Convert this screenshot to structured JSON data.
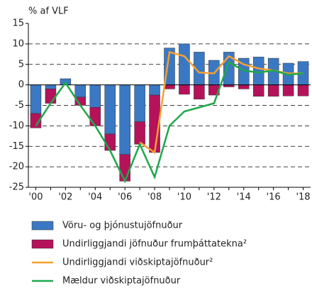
{
  "chart_data": {
    "type": "bar-line",
    "y_axis_label": "% af VLF",
    "categories": [
      "'00",
      null,
      "'02",
      null,
      "'04",
      null,
      "'06",
      null,
      "'08",
      null,
      "'10",
      null,
      "'12",
      null,
      "'14",
      null,
      "'16",
      null,
      "'18"
    ],
    "series": [
      {
        "name": "Vöru- og þjónustujöfnuður",
        "kind": "bar",
        "color": "#3b78c3",
        "values": [
          -7,
          -1,
          1.5,
          -3,
          -5.5,
          -12,
          -17,
          -9,
          -2.5,
          9,
          10,
          8,
          6,
          8,
          6.5,
          6.8,
          6.5,
          5.3,
          5.7
        ]
      },
      {
        "name": "Undirliggjandi jöfnuður frumþáttatekna²",
        "kind": "bar",
        "color": "#b5125a",
        "values": [
          -3.5,
          -3.5,
          0,
          -2,
          -4.5,
          -4,
          -6.5,
          -5.5,
          -14,
          -1,
          -2.3,
          -3.5,
          -2.5,
          -0.5,
          -1,
          -2.8,
          -2.8,
          -2.7,
          -2.7
        ]
      },
      {
        "name": "Undirliggjandi viðskiptajöfnuður²",
        "kind": "line",
        "color": "#f4a032",
        "values": [
          null,
          null,
          null,
          null,
          null,
          null,
          null,
          -14,
          -16.5,
          8,
          7,
          3,
          2.8,
          7,
          5,
          4,
          3.5,
          2.8,
          2.8
        ]
      },
      {
        "name": "Mældur viðskiptajöfnuður",
        "kind": "line",
        "color": "#1fa84a",
        "values": [
          -10,
          -4.5,
          0.5,
          -5,
          -10,
          -16,
          -23.5,
          -14.5,
          -22.5,
          -10,
          -6.5,
          -5.5,
          -4.5,
          5.5,
          3.5,
          3,
          3.5,
          2.5,
          2.8
        ]
      }
    ],
    "ylim": [
      -25,
      15
    ],
    "yticks": [
      -25,
      -20,
      -15,
      -10,
      -5,
      0,
      5,
      10,
      15
    ],
    "grid": true
  }
}
